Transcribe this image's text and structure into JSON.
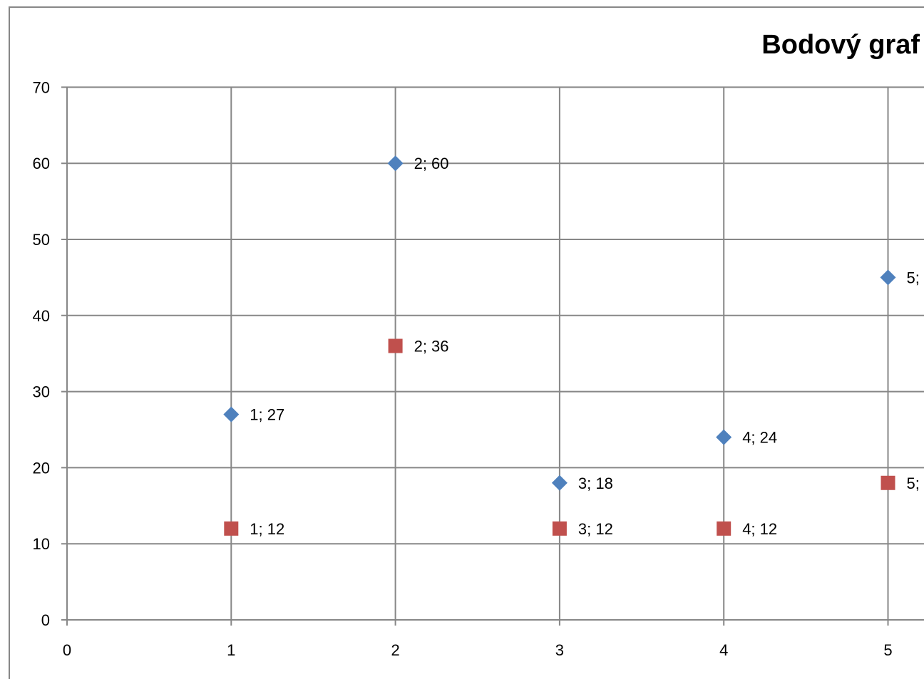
{
  "chart_data": {
    "type": "scatter",
    "title": "Bodový graf",
    "xlabel": "",
    "ylabel": "",
    "xlim": [
      0,
      5
    ],
    "ylim": [
      0,
      70
    ],
    "x_ticks": [
      0,
      1,
      2,
      3,
      4,
      5
    ],
    "y_ticks": [
      0,
      10,
      20,
      30,
      40,
      50,
      60,
      70
    ],
    "grid": true,
    "series": [
      {
        "marker": "diamond",
        "color": "#4f81bd",
        "points": [
          {
            "x": 1,
            "y": 27,
            "label": "1; 27"
          },
          {
            "x": 2,
            "y": 60,
            "label": "2; 60"
          },
          {
            "x": 3,
            "y": 18,
            "label": "3; 18"
          },
          {
            "x": 4,
            "y": 24,
            "label": "4; 24"
          },
          {
            "x": 5,
            "y": 45,
            "label": "5;"
          }
        ]
      },
      {
        "marker": "square",
        "color": "#c0504d",
        "points": [
          {
            "x": 1,
            "y": 12,
            "label": "1; 12"
          },
          {
            "x": 2,
            "y": 36,
            "label": "2; 36"
          },
          {
            "x": 3,
            "y": 12,
            "label": "3; 12"
          },
          {
            "x": 4,
            "y": 12,
            "label": "4; 12"
          },
          {
            "x": 5,
            "y": 18,
            "label": "5;"
          }
        ]
      }
    ]
  },
  "colors": {
    "grid": "#878787",
    "border": "#878787"
  }
}
